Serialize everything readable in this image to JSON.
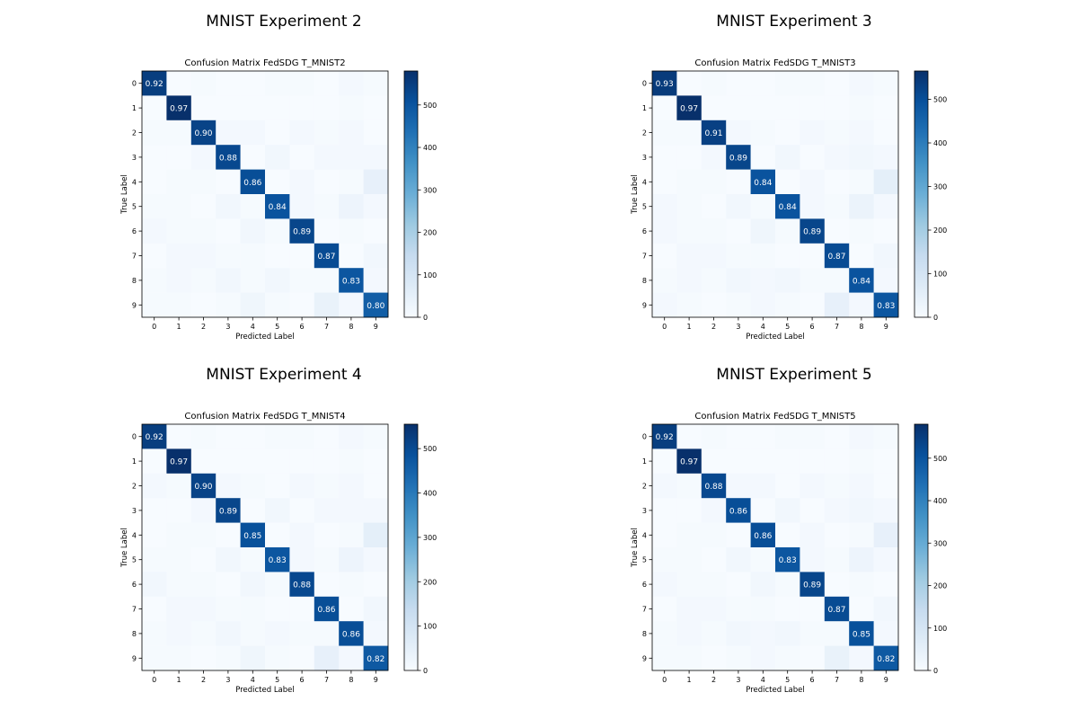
{
  "panels": [
    {
      "panel_title": "MNIST Experiment 2",
      "chart_data": {
        "type": "heatmap",
        "title": "Confusion Matrix FedSDG T_MNIST2",
        "xlabel": "Predicted Label",
        "ylabel": "True Label",
        "x_ticks": [
          "0",
          "1",
          "2",
          "3",
          "4",
          "5",
          "6",
          "7",
          "8",
          "9"
        ],
        "y_ticks": [
          "0",
          "1",
          "2",
          "3",
          "4",
          "5",
          "6",
          "7",
          "8",
          "9"
        ],
        "values": [
          [
            0.92,
            0.0,
            0.01,
            0.0,
            0.0,
            0.01,
            0.01,
            0.0,
            0.02,
            0.01
          ],
          [
            0.0,
            0.97,
            0.0,
            0.0,
            0.0,
            0.0,
            0.0,
            0.0,
            0.01,
            0.0
          ],
          [
            0.01,
            0.01,
            0.9,
            0.02,
            0.02,
            0.0,
            0.02,
            0.01,
            0.02,
            0.0
          ],
          [
            0.0,
            0.0,
            0.02,
            0.88,
            0.0,
            0.03,
            0.0,
            0.02,
            0.02,
            0.02
          ],
          [
            0.0,
            0.01,
            0.01,
            0.0,
            0.86,
            0.0,
            0.02,
            0.0,
            0.01,
            0.08
          ],
          [
            0.01,
            0.01,
            0.0,
            0.03,
            0.01,
            0.84,
            0.02,
            0.01,
            0.05,
            0.02
          ],
          [
            0.02,
            0.01,
            0.01,
            0.0,
            0.03,
            0.01,
            0.89,
            0.0,
            0.01,
            0.0
          ],
          [
            0.0,
            0.02,
            0.02,
            0.01,
            0.01,
            0.0,
            0.0,
            0.87,
            0.0,
            0.03
          ],
          [
            0.01,
            0.02,
            0.01,
            0.03,
            0.01,
            0.03,
            0.01,
            0.01,
            0.83,
            0.02
          ],
          [
            0.01,
            0.01,
            0.0,
            0.01,
            0.04,
            0.01,
            0.0,
            0.07,
            0.02,
            0.8
          ]
        ],
        "cell_labels_shown": "diagonal",
        "colormap": "Blues",
        "colorbar_ticks": [
          0,
          100,
          200,
          300,
          400,
          500
        ],
        "colorbar_range": [
          0,
          580
        ]
      }
    },
    {
      "panel_title": "MNIST Experiment 3",
      "chart_data": {
        "type": "heatmap",
        "title": "Confusion Matrix FedSDG T_MNIST3",
        "xlabel": "Predicted Label",
        "ylabel": "True Label",
        "x_ticks": [
          "0",
          "1",
          "2",
          "3",
          "4",
          "5",
          "6",
          "7",
          "8",
          "9"
        ],
        "y_ticks": [
          "0",
          "1",
          "2",
          "3",
          "4",
          "5",
          "6",
          "7",
          "8",
          "9"
        ],
        "values": [
          [
            0.93,
            0.0,
            0.01,
            0.0,
            0.0,
            0.01,
            0.01,
            0.0,
            0.02,
            0.01
          ],
          [
            0.0,
            0.97,
            0.0,
            0.0,
            0.0,
            0.0,
            0.0,
            0.0,
            0.01,
            0.0
          ],
          [
            0.01,
            0.01,
            0.91,
            0.02,
            0.01,
            0.0,
            0.02,
            0.01,
            0.02,
            0.0
          ],
          [
            0.0,
            0.0,
            0.02,
            0.89,
            0.0,
            0.03,
            0.0,
            0.02,
            0.03,
            0.02
          ],
          [
            0.0,
            0.01,
            0.01,
            0.0,
            0.84,
            0.0,
            0.02,
            0.0,
            0.01,
            0.09
          ],
          [
            0.02,
            0.01,
            0.0,
            0.03,
            0.01,
            0.84,
            0.02,
            0.01,
            0.06,
            0.02
          ],
          [
            0.02,
            0.01,
            0.01,
            0.0,
            0.04,
            0.01,
            0.89,
            0.0,
            0.01,
            0.0
          ],
          [
            0.0,
            0.02,
            0.02,
            0.01,
            0.01,
            0.0,
            0.0,
            0.87,
            0.0,
            0.03
          ],
          [
            0.01,
            0.02,
            0.01,
            0.03,
            0.02,
            0.03,
            0.01,
            0.01,
            0.84,
            0.02
          ],
          [
            0.02,
            0.01,
            0.0,
            0.01,
            0.02,
            0.01,
            0.0,
            0.08,
            0.02,
            0.83
          ]
        ],
        "cell_labels_shown": "diagonal",
        "colormap": "Blues",
        "colorbar_ticks": [
          0,
          100,
          200,
          300,
          400,
          500
        ],
        "colorbar_range": [
          0,
          565
        ]
      }
    },
    {
      "panel_title": "MNIST Experiment 4",
      "chart_data": {
        "type": "heatmap",
        "title": "Confusion Matrix FedSDG T_MNIST4",
        "xlabel": "Predicted Label",
        "ylabel": "True Label",
        "x_ticks": [
          "0",
          "1",
          "2",
          "3",
          "4",
          "5",
          "6",
          "7",
          "8",
          "9"
        ],
        "y_ticks": [
          "0",
          "1",
          "2",
          "3",
          "4",
          "5",
          "6",
          "7",
          "8",
          "9"
        ],
        "values": [
          [
            0.92,
            0.0,
            0.01,
            0.0,
            0.0,
            0.01,
            0.01,
            0.0,
            0.02,
            0.01
          ],
          [
            0.0,
            0.97,
            0.0,
            0.0,
            0.0,
            0.0,
            0.0,
            0.0,
            0.01,
            0.0
          ],
          [
            0.02,
            0.01,
            0.9,
            0.02,
            0.01,
            0.0,
            0.02,
            0.01,
            0.02,
            0.0
          ],
          [
            0.0,
            0.0,
            0.02,
            0.89,
            0.0,
            0.03,
            0.0,
            0.02,
            0.02,
            0.02
          ],
          [
            0.0,
            0.01,
            0.01,
            0.0,
            0.85,
            0.0,
            0.02,
            0.0,
            0.01,
            0.09
          ],
          [
            0.01,
            0.01,
            0.0,
            0.03,
            0.01,
            0.83,
            0.02,
            0.01,
            0.05,
            0.02
          ],
          [
            0.03,
            0.01,
            0.01,
            0.0,
            0.03,
            0.01,
            0.88,
            0.0,
            0.01,
            0.0
          ],
          [
            0.0,
            0.02,
            0.02,
            0.01,
            0.01,
            0.0,
            0.0,
            0.86,
            0.0,
            0.03
          ],
          [
            0.01,
            0.02,
            0.01,
            0.03,
            0.01,
            0.02,
            0.01,
            0.01,
            0.86,
            0.02
          ],
          [
            0.01,
            0.01,
            0.0,
            0.01,
            0.04,
            0.01,
            0.0,
            0.08,
            0.02,
            0.82
          ]
        ],
        "cell_labels_shown": "diagonal",
        "colormap": "Blues",
        "colorbar_ticks": [
          0,
          100,
          200,
          300,
          400,
          500
        ],
        "colorbar_range": [
          0,
          555
        ]
      }
    },
    {
      "panel_title": "MNIST Experiment 5",
      "chart_data": {
        "type": "heatmap",
        "title": "Confusion Matrix FedSDG T_MNIST5",
        "xlabel": "Predicted Label",
        "ylabel": "True Label",
        "x_ticks": [
          "0",
          "1",
          "2",
          "3",
          "4",
          "5",
          "6",
          "7",
          "8",
          "9"
        ],
        "y_ticks": [
          "0",
          "1",
          "2",
          "3",
          "4",
          "5",
          "6",
          "7",
          "8",
          "9"
        ],
        "values": [
          [
            0.92,
            0.0,
            0.01,
            0.0,
            0.0,
            0.01,
            0.01,
            0.0,
            0.02,
            0.01
          ],
          [
            0.0,
            0.97,
            0.0,
            0.0,
            0.0,
            0.0,
            0.0,
            0.0,
            0.01,
            0.0
          ],
          [
            0.02,
            0.01,
            0.88,
            0.02,
            0.02,
            0.0,
            0.02,
            0.01,
            0.02,
            0.0
          ],
          [
            0.0,
            0.0,
            0.02,
            0.86,
            0.0,
            0.03,
            0.0,
            0.02,
            0.03,
            0.02
          ],
          [
            0.0,
            0.01,
            0.01,
            0.0,
            0.86,
            0.0,
            0.02,
            0.0,
            0.01,
            0.08
          ],
          [
            0.01,
            0.01,
            0.0,
            0.03,
            0.01,
            0.83,
            0.02,
            0.01,
            0.05,
            0.02
          ],
          [
            0.02,
            0.01,
            0.01,
            0.0,
            0.03,
            0.01,
            0.89,
            0.0,
            0.01,
            0.0
          ],
          [
            0.0,
            0.02,
            0.02,
            0.01,
            0.01,
            0.0,
            0.0,
            0.87,
            0.0,
            0.03
          ],
          [
            0.01,
            0.02,
            0.01,
            0.03,
            0.02,
            0.03,
            0.01,
            0.01,
            0.85,
            0.02
          ],
          [
            0.01,
            0.01,
            0.0,
            0.01,
            0.02,
            0.01,
            0.0,
            0.07,
            0.02,
            0.82
          ]
        ],
        "cell_labels_shown": "diagonal",
        "colormap": "Blues",
        "colorbar_ticks": [
          0,
          100,
          200,
          300,
          400,
          500
        ],
        "colorbar_range": [
          0,
          580
        ]
      }
    }
  ]
}
